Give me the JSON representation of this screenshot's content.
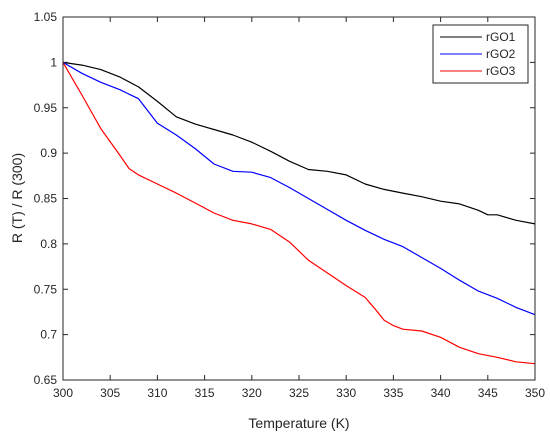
{
  "chart_data": {
    "type": "line",
    "title": "",
    "xlabel": "Temperature (K)",
    "ylabel": "R (T) / R (300)",
    "xlim": [
      300,
      350
    ],
    "ylim": [
      0.65,
      1.05
    ],
    "xticks": [
      300,
      305,
      310,
      315,
      320,
      325,
      330,
      335,
      340,
      345,
      350
    ],
    "yticks": [
      0.65,
      0.7,
      0.75,
      0.8,
      0.85,
      0.9,
      0.95,
      1,
      1.05
    ],
    "xtick_labels": [
      "300",
      "305",
      "310",
      "315",
      "320",
      "325",
      "330",
      "335",
      "340",
      "345",
      "350"
    ],
    "ytick_labels": [
      "0.65",
      "0.7",
      "0.75",
      "0.8",
      "0.85",
      "0.9",
      "0.95",
      "1",
      "1.05"
    ],
    "grid": false,
    "legend_position": "top-right",
    "series": [
      {
        "name": "rGO1",
        "color": "#000000",
        "x": [
          300,
          302,
          304,
          306,
          308,
          310,
          312,
          314,
          316,
          318,
          320,
          322,
          324,
          326,
          328,
          330,
          332,
          334,
          336,
          338,
          340,
          342,
          344,
          345,
          346,
          348,
          350
        ],
        "y": [
          1.0,
          0.997,
          0.992,
          0.984,
          0.973,
          0.957,
          0.94,
          0.932,
          0.926,
          0.92,
          0.912,
          0.902,
          0.891,
          0.882,
          0.88,
          0.876,
          0.866,
          0.86,
          0.856,
          0.852,
          0.847,
          0.844,
          0.837,
          0.832,
          0.832,
          0.826,
          0.822
        ]
      },
      {
        "name": "rGO2",
        "color": "#0000ff",
        "x": [
          300,
          302,
          304,
          306,
          308,
          310,
          312,
          314,
          316,
          318,
          320,
          322,
          324,
          326,
          328,
          330,
          332,
          334,
          336,
          338,
          340,
          342,
          344,
          346,
          348,
          350
        ],
        "y": [
          1.0,
          0.988,
          0.978,
          0.97,
          0.96,
          0.933,
          0.92,
          0.905,
          0.888,
          0.88,
          0.879,
          0.873,
          0.862,
          0.85,
          0.838,
          0.826,
          0.815,
          0.805,
          0.797,
          0.785,
          0.773,
          0.76,
          0.748,
          0.74,
          0.73,
          0.722
        ]
      },
      {
        "name": "rGO3",
        "color": "#ff0000",
        "x": [
          300,
          302,
          304,
          306,
          307,
          308,
          310,
          312,
          314,
          316,
          318,
          320,
          322,
          324,
          326,
          328,
          330,
          332,
          333,
          334,
          335,
          336,
          338,
          340,
          342,
          344,
          346,
          348,
          350
        ],
        "y": [
          1.0,
          0.964,
          0.927,
          0.898,
          0.883,
          0.876,
          0.866,
          0.856,
          0.845,
          0.834,
          0.826,
          0.822,
          0.816,
          0.802,
          0.782,
          0.768,
          0.754,
          0.741,
          0.729,
          0.716,
          0.71,
          0.706,
          0.704,
          0.697,
          0.686,
          0.679,
          0.675,
          0.67,
          0.668
        ]
      }
    ]
  }
}
